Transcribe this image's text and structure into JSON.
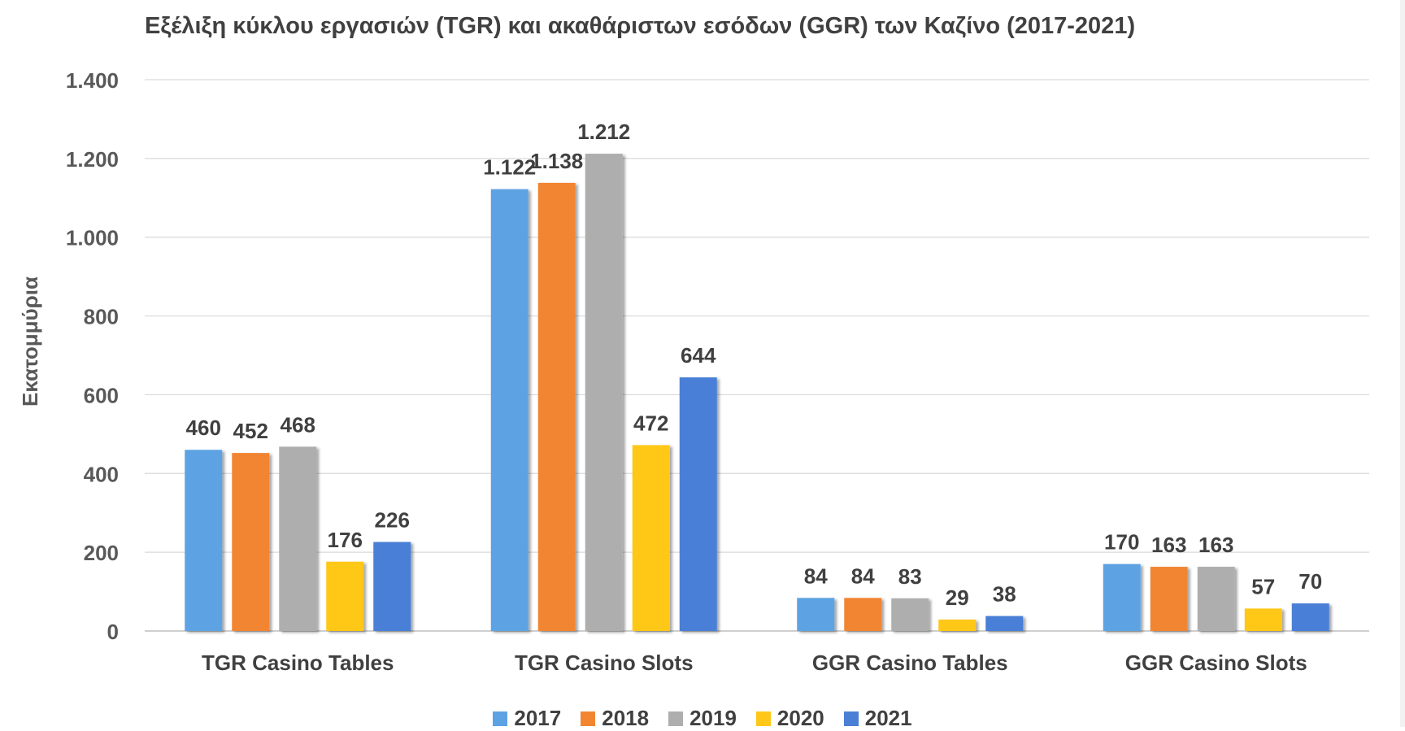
{
  "chart_data": {
    "type": "bar",
    "title": "Εξέλιξη κύκλου εργασιών (TGR) και ακαθάριστων εσόδων (GGR) των Καζίνο (2017-2021)",
    "xlabel": "",
    "ylabel": "Εκατομμύρια",
    "ylim": [
      0,
      1400
    ],
    "yticks": [
      0,
      200,
      400,
      600,
      800,
      1000,
      1200,
      1400
    ],
    "ytick_labels": [
      "0",
      "200",
      "400",
      "600",
      "800",
      "1.000",
      "1.200",
      "1.400"
    ],
    "grid": true,
    "legend_position": "bottom",
    "categories": [
      "TGR Casino Tables",
      "TGR Casino Slots",
      "GGR Casino Tables",
      "GGR Casino Slots"
    ],
    "series": [
      {
        "name": "2017",
        "color": "#5DA3E3",
        "values": [
          460,
          1122,
          84,
          170
        ],
        "labels": [
          "460",
          "1.122",
          "84",
          "170"
        ]
      },
      {
        "name": "2018",
        "color": "#F28530",
        "values": [
          452,
          1138,
          84,
          163
        ],
        "labels": [
          "452",
          "1.138",
          "84",
          "163"
        ]
      },
      {
        "name": "2019",
        "color": "#AEAEAE",
        "values": [
          468,
          1212,
          83,
          163
        ],
        "labels": [
          "468",
          "1.212",
          "83",
          "163"
        ]
      },
      {
        "name": "2020",
        "color": "#FFC718",
        "values": [
          176,
          472,
          29,
          57
        ],
        "labels": [
          "176",
          "472",
          "29",
          "57"
        ]
      },
      {
        "name": "2021",
        "color": "#4A7FD6",
        "values": [
          226,
          644,
          38,
          70
        ],
        "labels": [
          "226",
          "644",
          "38",
          "70"
        ]
      }
    ]
  }
}
